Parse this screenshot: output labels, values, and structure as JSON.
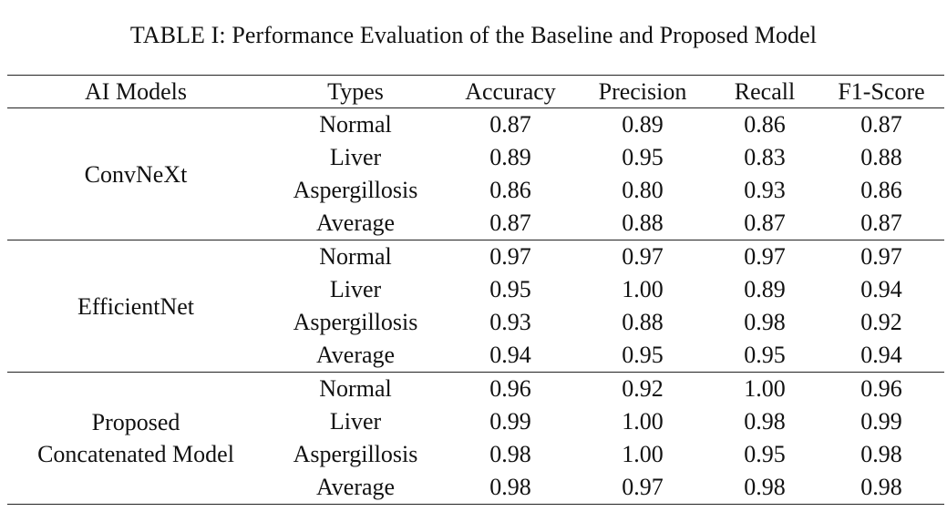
{
  "caption": "TABLE I: Performance Evaluation of the Baseline and Proposed Model",
  "columns": [
    "AI Models",
    "Types",
    "Accuracy",
    "Precision",
    "Recall",
    "F1-Score"
  ],
  "groups": [
    {
      "model_lines": [
        "ConvNeXt"
      ],
      "rows": [
        {
          "type": "Normal",
          "accuracy": "0.87",
          "precision": "0.89",
          "recall": "0.86",
          "f1": "0.87"
        },
        {
          "type": "Liver",
          "accuracy": "0.89",
          "precision": "0.95",
          "recall": "0.83",
          "f1": "0.88"
        },
        {
          "type": "Aspergillosis",
          "accuracy": "0.86",
          "precision": "0.80",
          "recall": "0.93",
          "f1": "0.86"
        },
        {
          "type": "Average",
          "accuracy": "0.87",
          "precision": "0.88",
          "recall": "0.87",
          "f1": "0.87"
        }
      ]
    },
    {
      "model_lines": [
        "EfficientNet"
      ],
      "rows": [
        {
          "type": "Normal",
          "accuracy": "0.97",
          "precision": "0.97",
          "recall": "0.97",
          "f1": "0.97"
        },
        {
          "type": "Liver",
          "accuracy": "0.95",
          "precision": "1.00",
          "recall": "0.89",
          "f1": "0.94"
        },
        {
          "type": "Aspergillosis",
          "accuracy": "0.93",
          "precision": "0.88",
          "recall": "0.98",
          "f1": "0.92"
        },
        {
          "type": "Average",
          "accuracy": "0.94",
          "precision": "0.95",
          "recall": "0.95",
          "f1": "0.94"
        }
      ]
    },
    {
      "model_lines": [
        "Proposed",
        "Concatenated Model"
      ],
      "rows": [
        {
          "type": "Normal",
          "accuracy": "0.96",
          "precision": "0.92",
          "recall": "1.00",
          "f1": "0.96"
        },
        {
          "type": "Liver",
          "accuracy": "0.99",
          "precision": "1.00",
          "recall": "0.98",
          "f1": "0.99"
        },
        {
          "type": "Aspergillosis",
          "accuracy": "0.98",
          "precision": "1.00",
          "recall": "0.95",
          "f1": "0.98"
        },
        {
          "type": "Average",
          "accuracy": "0.98",
          "precision": "0.97",
          "recall": "0.98",
          "f1": "0.98"
        }
      ]
    }
  ]
}
